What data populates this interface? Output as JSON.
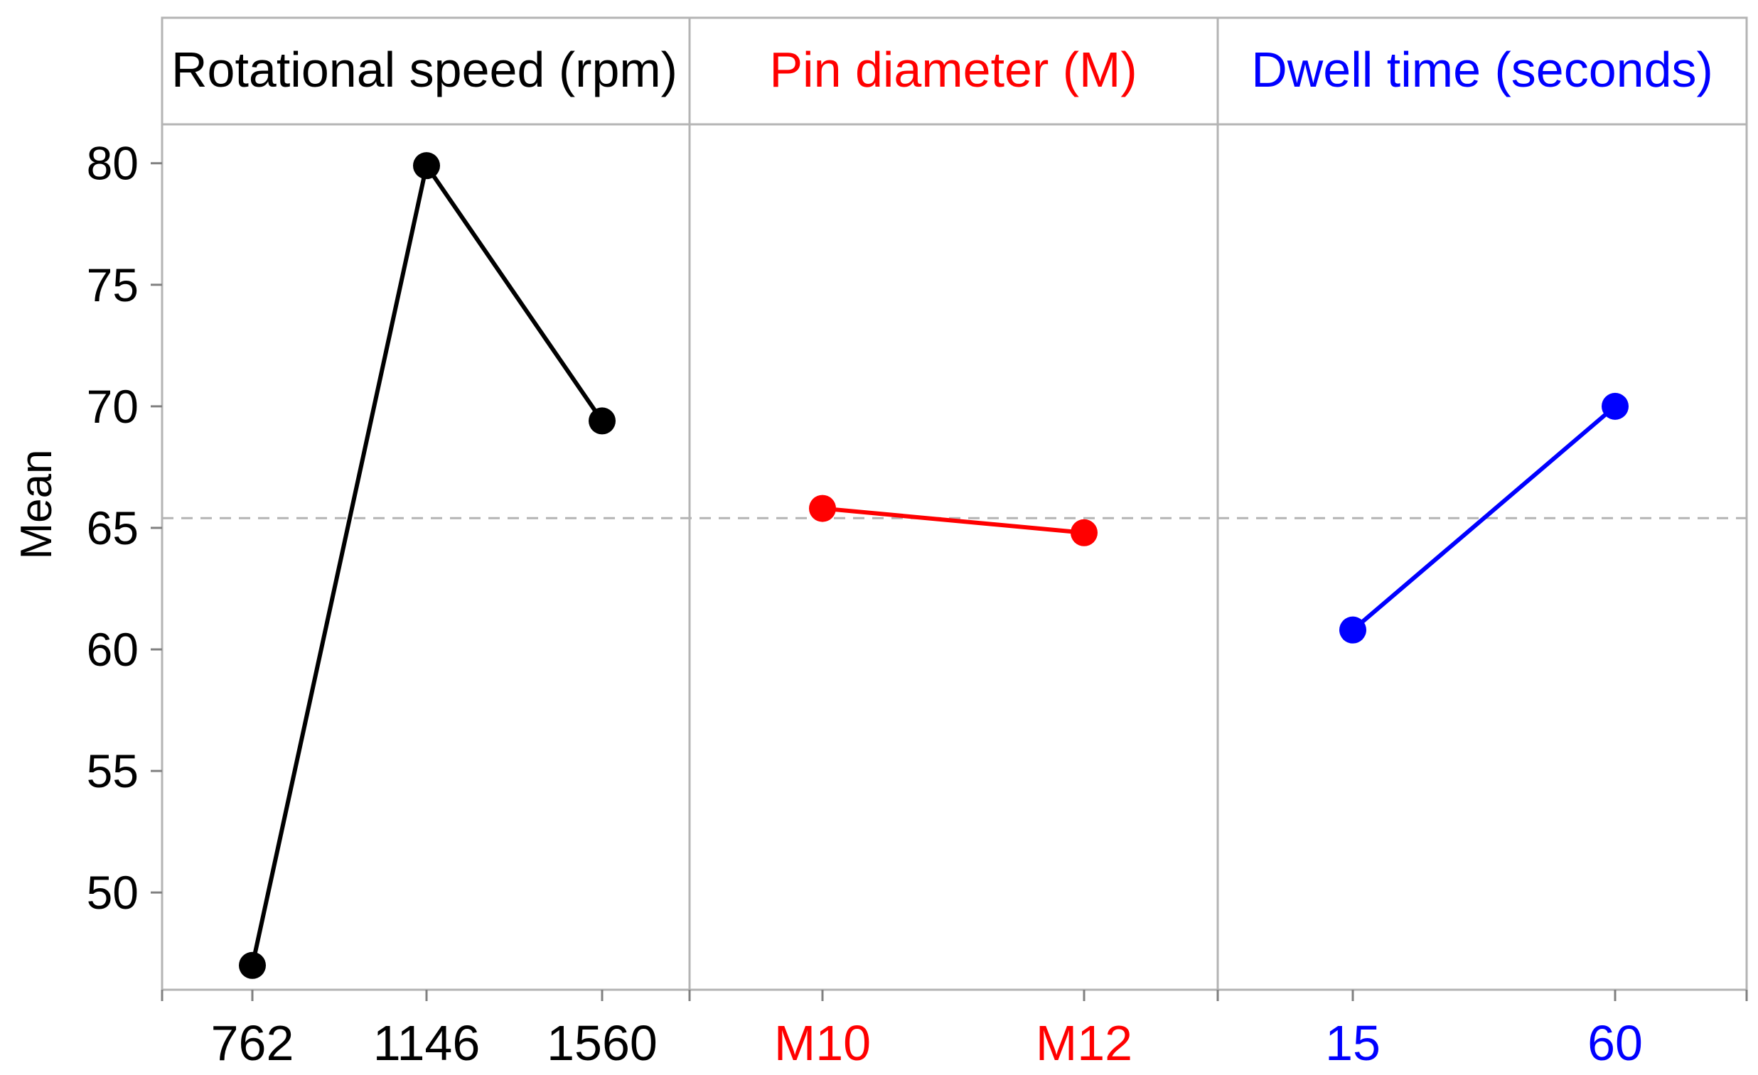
{
  "chart_data": {
    "type": "line",
    "title": "",
    "ylabel": "Mean",
    "ylim": [
      46,
      81.6
    ],
    "yticks": [
      50,
      55,
      60,
      65,
      70,
      75,
      80
    ],
    "grid": false,
    "reference_line": {
      "value": 65.4,
      "style": "dashed"
    },
    "panels": [
      {
        "title": "Rotational speed (rpm)",
        "color": "#000000",
        "categories": [
          "762",
          "1146",
          "1560"
        ],
        "values": [
          47.0,
          79.9,
          69.4
        ]
      },
      {
        "title": "Pin diameter (M)",
        "color": "#ff0000",
        "categories": [
          "M10",
          "M12"
        ],
        "values": [
          65.8,
          64.8
        ]
      },
      {
        "title": "Dwell time (seconds)",
        "color": "#0000ff",
        "categories": [
          "15",
          "60"
        ],
        "values": [
          60.8,
          70.0
        ]
      }
    ]
  }
}
